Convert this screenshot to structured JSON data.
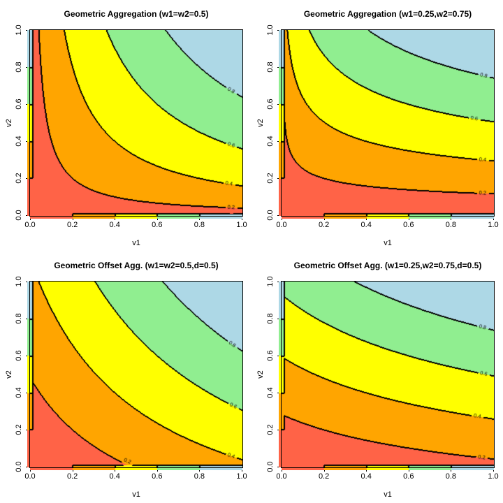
{
  "figure": {
    "background": "#ffffff",
    "rows": 2,
    "cols": 2
  },
  "palette": {
    "band_colors": [
      "#FF6347",
      "#FFA500",
      "#FFFF00",
      "#90EE90",
      "#ADD8E6"
    ],
    "band_ranges": [
      "0.0-0.2",
      "0.2-0.4",
      "0.4-0.6",
      "0.6-0.8",
      "0.8-1.0"
    ],
    "contour_line_color": "#000000",
    "text_color": "#000000"
  },
  "chart_data": [
    {
      "type": "contour",
      "title": "Geometric Aggregation (w1=w2=0.5)",
      "xlabel": "v1",
      "ylabel": "v2",
      "xlim": [
        0,
        1
      ],
      "ylim": [
        0,
        1
      ],
      "x_ticks": [
        "0.0",
        "0.2",
        "0.4",
        "0.6",
        "0.8",
        "1.0"
      ],
      "y_ticks": [
        "0.0",
        "0.2",
        "0.4",
        "0.6",
        "0.8",
        "1.0"
      ],
      "levels": [
        0.2,
        0.4,
        0.6,
        0.8
      ],
      "function": {
        "kind": "geometric",
        "w1": 0.5,
        "w2": 0.5,
        "d": 0,
        "formula": "f(v1,v2) = v1^w1 * v2^w2",
        "edge_rule": "f(0,y)=y, f(x,0)=x, f(0,0)=0"
      },
      "contour_labels": [
        {
          "text": "0.2",
          "level": 0.2,
          "anchor_x": 0.95
        },
        {
          "text": "0.4",
          "level": 0.4,
          "anchor_x": 0.94
        },
        {
          "text": "0.6",
          "level": 0.6,
          "anchor_x": 0.95
        },
        {
          "text": "0.8",
          "level": 0.8,
          "anchor_x": 0.95
        }
      ]
    },
    {
      "type": "contour",
      "title": "Geometric Aggregation (w1=0.25,w2=0.75)",
      "xlabel": "v1",
      "ylabel": "v2",
      "xlim": [
        0,
        1
      ],
      "ylim": [
        0,
        1
      ],
      "x_ticks": [
        "0.0",
        "0.2",
        "0.4",
        "0.6",
        "0.8",
        "1.0"
      ],
      "y_ticks": [
        "0.0",
        "0.2",
        "0.4",
        "0.6",
        "0.8",
        "1.0"
      ],
      "levels": [
        0.2,
        0.4,
        0.6,
        0.8
      ],
      "function": {
        "kind": "geometric",
        "w1": 0.25,
        "w2": 0.75,
        "d": 0,
        "formula": "f(v1,v2) = v1^w1 * v2^w2",
        "edge_rule": "f(0,y)=y, f(x,0)=x, f(0,0)=0"
      },
      "contour_labels": [
        {
          "text": "0.2",
          "level": 0.2,
          "anchor_x": 0.95
        },
        {
          "text": "0.4",
          "level": 0.4,
          "anchor_x": 0.95
        },
        {
          "text": "0.6",
          "level": 0.6,
          "anchor_x": 0.91
        },
        {
          "text": "0.8",
          "level": 0.8,
          "anchor_x": 0.955
        }
      ]
    },
    {
      "type": "contour",
      "title": "Geometric Offset Agg. (w1=w2=0.5,d=0.5)",
      "xlabel": "v1",
      "ylabel": "v2",
      "xlim": [
        0,
        1
      ],
      "ylim": [
        0,
        1
      ],
      "x_ticks": [
        "0.0",
        "0.2",
        "0.4",
        "0.6",
        "0.8",
        "1.0"
      ],
      "y_ticks": [
        "0.0",
        "0.2",
        "0.4",
        "0.6",
        "0.8",
        "1.0"
      ],
      "levels": [
        0.2,
        0.4,
        0.6,
        0.8
      ],
      "function": {
        "kind": "geometric-offset",
        "w1": 0.5,
        "w2": 0.5,
        "d": 0.5,
        "formula": "f(v1,v2) = (v1+d)^w1 * (v2+d)^w2 - d",
        "edge_rule": "f(0,y)=y, f(x,0)=x, f(0,0)=0"
      },
      "contour_labels": [
        {
          "text": "0.2",
          "level": 0.2,
          "anchor_x": 0.46
        },
        {
          "text": "0.4",
          "level": 0.4,
          "anchor_x": 0.95
        },
        {
          "text": "0.6",
          "level": 0.6,
          "anchor_x": 0.96
        },
        {
          "text": "0.8",
          "level": 0.8,
          "anchor_x": 0.955
        }
      ]
    },
    {
      "type": "contour",
      "title": "Geometric Offset Agg. (w1=0.25,w2=0.75,d=0.5)",
      "xlabel": "v1",
      "ylabel": "v2",
      "xlim": [
        0,
        1
      ],
      "ylim": [
        0,
        1
      ],
      "x_ticks": [
        "0.0",
        "0.2",
        "0.4",
        "0.6",
        "0.8",
        "1.0"
      ],
      "y_ticks": [
        "0.0",
        "0.2",
        "0.4",
        "0.6",
        "0.8",
        "1.0"
      ],
      "levels": [
        0.2,
        0.4,
        0.6,
        0.8
      ],
      "function": {
        "kind": "geometric-offset",
        "w1": 0.25,
        "w2": 0.75,
        "d": 0.5,
        "formula": "f(v1,v2) = (v1+d)^w1 * (v2+d)^w2 - d",
        "edge_rule": "f(0,y)=y, f(x,0)=x, f(0,0)=0"
      },
      "contour_labels": [
        {
          "text": "0.2",
          "level": 0.2,
          "anchor_x": 0.945
        },
        {
          "text": "0.4",
          "level": 0.4,
          "anchor_x": 0.925
        },
        {
          "text": "0.6",
          "level": 0.6,
          "anchor_x": 0.955
        },
        {
          "text": "0.8",
          "level": 0.8,
          "anchor_x": 0.95
        }
      ]
    }
  ]
}
